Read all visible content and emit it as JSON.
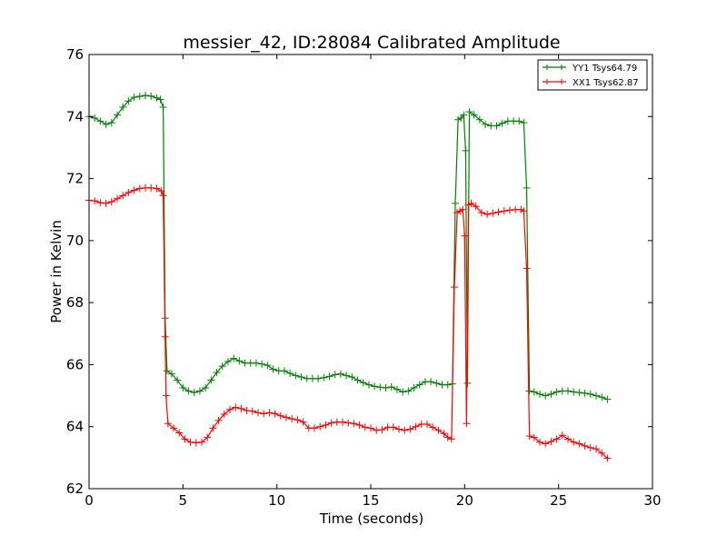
{
  "chart_data": {
    "type": "line",
    "title": "messier_42, ID:28084 Calibrated Amplitude",
    "xlabel": "Time (seconds)",
    "ylabel": "Power in Kelvin",
    "xlim": [
      0,
      30
    ],
    "ylim": [
      62,
      76
    ],
    "xticks": [
      0,
      5,
      10,
      15,
      20,
      25,
      30
    ],
    "yticks": [
      62,
      64,
      66,
      68,
      70,
      72,
      74,
      76
    ],
    "grid": false,
    "legend_position": "top-right",
    "series": [
      {
        "name": "YY1 Tsys64.79",
        "color": "#008000",
        "marker": "+",
        "points": [
          [
            0.0,
            74.0
          ],
          [
            0.3,
            73.95
          ],
          [
            0.6,
            73.85
          ],
          [
            0.9,
            73.75
          ],
          [
            1.2,
            73.8
          ],
          [
            1.5,
            74.05
          ],
          [
            1.8,
            74.3
          ],
          [
            2.1,
            74.5
          ],
          [
            2.4,
            74.62
          ],
          [
            2.7,
            74.65
          ],
          [
            3.0,
            74.68
          ],
          [
            3.3,
            74.66
          ],
          [
            3.6,
            74.6
          ],
          [
            3.8,
            74.55
          ],
          [
            3.95,
            74.3
          ],
          [
            4.05,
            67.5
          ],
          [
            4.15,
            65.8
          ],
          [
            4.4,
            65.7
          ],
          [
            4.7,
            65.5
          ],
          [
            5.0,
            65.25
          ],
          [
            5.3,
            65.15
          ],
          [
            5.6,
            65.1
          ],
          [
            5.9,
            65.15
          ],
          [
            6.2,
            65.25
          ],
          [
            6.5,
            65.5
          ],
          [
            6.8,
            65.75
          ],
          [
            7.1,
            65.95
          ],
          [
            7.4,
            66.1
          ],
          [
            7.7,
            66.2
          ],
          [
            8.0,
            66.12
          ],
          [
            8.3,
            66.05
          ],
          [
            8.6,
            66.05
          ],
          [
            8.9,
            66.05
          ],
          [
            9.2,
            66.02
          ],
          [
            9.5,
            65.98
          ],
          [
            9.8,
            65.85
          ],
          [
            10.1,
            65.8
          ],
          [
            10.4,
            65.8
          ],
          [
            10.7,
            65.72
          ],
          [
            11.0,
            65.65
          ],
          [
            11.3,
            65.6
          ],
          [
            11.6,
            65.55
          ],
          [
            11.9,
            65.55
          ],
          [
            12.2,
            65.55
          ],
          [
            12.5,
            65.58
          ],
          [
            12.8,
            65.62
          ],
          [
            13.1,
            65.68
          ],
          [
            13.4,
            65.7
          ],
          [
            13.7,
            65.65
          ],
          [
            14.0,
            65.6
          ],
          [
            14.3,
            65.5
          ],
          [
            14.6,
            65.42
          ],
          [
            14.9,
            65.35
          ],
          [
            15.2,
            65.3
          ],
          [
            15.5,
            65.27
          ],
          [
            15.8,
            65.25
          ],
          [
            16.1,
            65.28
          ],
          [
            16.4,
            65.2
          ],
          [
            16.7,
            65.12
          ],
          [
            17.0,
            65.15
          ],
          [
            17.3,
            65.25
          ],
          [
            17.6,
            65.35
          ],
          [
            17.9,
            65.45
          ],
          [
            18.2,
            65.45
          ],
          [
            18.5,
            65.4
          ],
          [
            18.8,
            65.35
          ],
          [
            19.1,
            65.35
          ],
          [
            19.35,
            65.38
          ],
          [
            19.5,
            71.2
          ],
          [
            19.65,
            73.9
          ],
          [
            19.8,
            73.95
          ],
          [
            19.95,
            74.05
          ],
          [
            20.05,
            72.9
          ],
          [
            20.15,
            65.4
          ],
          [
            20.25,
            74.15
          ],
          [
            20.5,
            74.05
          ],
          [
            20.8,
            73.9
          ],
          [
            21.1,
            73.75
          ],
          [
            21.4,
            73.7
          ],
          [
            21.7,
            73.7
          ],
          [
            22.0,
            73.78
          ],
          [
            22.3,
            73.85
          ],
          [
            22.6,
            73.85
          ],
          [
            22.9,
            73.85
          ],
          [
            23.15,
            73.8
          ],
          [
            23.3,
            71.7
          ],
          [
            23.45,
            65.15
          ],
          [
            23.7,
            65.12
          ],
          [
            24.0,
            65.05
          ],
          [
            24.3,
            65.0
          ],
          [
            24.6,
            65.05
          ],
          [
            24.9,
            65.12
          ],
          [
            25.2,
            65.15
          ],
          [
            25.5,
            65.15
          ],
          [
            25.8,
            65.12
          ],
          [
            26.1,
            65.1
          ],
          [
            26.4,
            65.08
          ],
          [
            26.7,
            65.05
          ],
          [
            27.0,
            65.0
          ],
          [
            27.3,
            64.95
          ],
          [
            27.6,
            64.88
          ]
        ]
      },
      {
        "name": "XX1 Tsys62.87",
        "color": "#ff0000",
        "marker": "+",
        "points": [
          [
            0.0,
            71.3
          ],
          [
            0.3,
            71.28
          ],
          [
            0.6,
            71.22
          ],
          [
            0.9,
            71.2
          ],
          [
            1.2,
            71.25
          ],
          [
            1.5,
            71.35
          ],
          [
            1.8,
            71.45
          ],
          [
            2.1,
            71.55
          ],
          [
            2.4,
            71.62
          ],
          [
            2.7,
            71.68
          ],
          [
            3.0,
            71.7
          ],
          [
            3.3,
            71.7
          ],
          [
            3.6,
            71.68
          ],
          [
            3.85,
            71.6
          ],
          [
            3.95,
            71.45
          ],
          [
            4.05,
            66.9
          ],
          [
            4.1,
            65.0
          ],
          [
            4.2,
            64.1
          ],
          [
            4.5,
            63.95
          ],
          [
            4.8,
            63.8
          ],
          [
            5.1,
            63.6
          ],
          [
            5.4,
            63.5
          ],
          [
            5.7,
            63.48
          ],
          [
            6.0,
            63.5
          ],
          [
            6.3,
            63.65
          ],
          [
            6.6,
            63.95
          ],
          [
            6.9,
            64.2
          ],
          [
            7.2,
            64.4
          ],
          [
            7.5,
            64.55
          ],
          [
            7.8,
            64.62
          ],
          [
            8.1,
            64.58
          ],
          [
            8.4,
            64.52
          ],
          [
            8.7,
            64.5
          ],
          [
            9.0,
            64.45
          ],
          [
            9.3,
            64.42
          ],
          [
            9.6,
            64.45
          ],
          [
            9.9,
            64.42
          ],
          [
            10.2,
            64.35
          ],
          [
            10.5,
            64.3
          ],
          [
            10.8,
            64.25
          ],
          [
            11.1,
            64.22
          ],
          [
            11.4,
            64.15
          ],
          [
            11.7,
            63.95
          ],
          [
            12.0,
            63.95
          ],
          [
            12.3,
            64.0
          ],
          [
            12.6,
            64.05
          ],
          [
            12.9,
            64.12
          ],
          [
            13.2,
            64.15
          ],
          [
            13.5,
            64.15
          ],
          [
            13.8,
            64.12
          ],
          [
            14.1,
            64.1
          ],
          [
            14.4,
            64.05
          ],
          [
            14.7,
            63.98
          ],
          [
            15.0,
            63.95
          ],
          [
            15.3,
            63.88
          ],
          [
            15.6,
            63.9
          ],
          [
            15.9,
            63.98
          ],
          [
            16.2,
            63.98
          ],
          [
            16.5,
            63.92
          ],
          [
            16.8,
            63.88
          ],
          [
            17.1,
            63.92
          ],
          [
            17.4,
            64.0
          ],
          [
            17.7,
            64.08
          ],
          [
            18.0,
            64.08
          ],
          [
            18.3,
            63.98
          ],
          [
            18.6,
            63.88
          ],
          [
            18.9,
            63.78
          ],
          [
            19.1,
            63.65
          ],
          [
            19.3,
            63.6
          ],
          [
            19.45,
            68.5
          ],
          [
            19.6,
            70.9
          ],
          [
            19.75,
            70.95
          ],
          [
            19.9,
            71.0
          ],
          [
            20.0,
            70.15
          ],
          [
            20.1,
            64.1
          ],
          [
            20.2,
            71.15
          ],
          [
            20.35,
            71.2
          ],
          [
            20.6,
            71.1
          ],
          [
            20.9,
            70.9
          ],
          [
            21.2,
            70.85
          ],
          [
            21.5,
            70.88
          ],
          [
            21.8,
            70.92
          ],
          [
            22.1,
            70.95
          ],
          [
            22.4,
            70.98
          ],
          [
            22.7,
            71.0
          ],
          [
            23.0,
            71.0
          ],
          [
            23.15,
            70.95
          ],
          [
            23.3,
            69.1
          ],
          [
            23.45,
            63.7
          ],
          [
            23.7,
            63.65
          ],
          [
            24.0,
            63.5
          ],
          [
            24.3,
            63.45
          ],
          [
            24.6,
            63.52
          ],
          [
            24.9,
            63.6
          ],
          [
            25.2,
            63.72
          ],
          [
            25.5,
            63.6
          ],
          [
            25.8,
            63.5
          ],
          [
            26.1,
            63.45
          ],
          [
            26.4,
            63.38
          ],
          [
            26.7,
            63.32
          ],
          [
            27.0,
            63.28
          ],
          [
            27.3,
            63.15
          ],
          [
            27.6,
            62.98
          ]
        ]
      }
    ]
  }
}
